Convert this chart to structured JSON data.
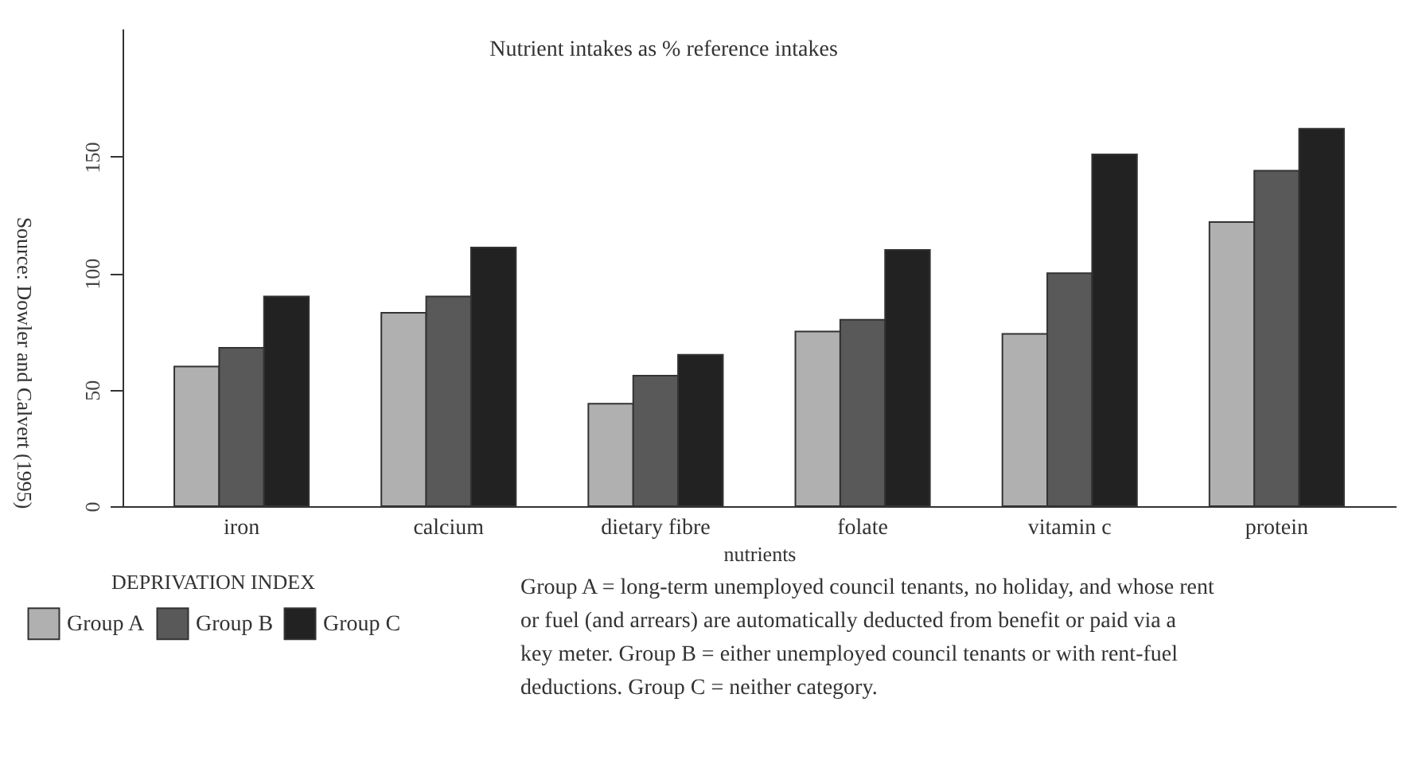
{
  "chart_data": {
    "type": "bar",
    "title": "Nutrient intakes as % reference intakes",
    "xlabel": "nutrients",
    "legend_title": "DEPRIVATION INDEX",
    "categories": [
      "iron",
      "calcium",
      "dietary fibre",
      "folate",
      "vitamin c",
      "protein"
    ],
    "series": [
      {
        "name": "Group A",
        "color": "#b0b0b0",
        "values": [
          60,
          83,
          44,
          75,
          74,
          122
        ]
      },
      {
        "name": "Group B",
        "color": "#595959",
        "values": [
          68,
          90,
          56,
          80,
          100,
          144
        ]
      },
      {
        "name": "Group C",
        "color": "#222222",
        "values": [
          90,
          111,
          65,
          110,
          151,
          162
        ]
      }
    ],
    "ylim": [
      0,
      205
    ],
    "yticks": [
      0,
      50,
      100,
      150
    ],
    "grid": false,
    "legend": "bottom left",
    "annotations": [
      "Source: Dowler and Calvert (1995)",
      "Group A = long-term unemployed council tenants, no holiday, and whose rent or fuel (and arrears) are automatically deducted from benefit or paid via a key meter. Group B = either unemployed council tenants or with rent-fuel deductions. Group C = neither category."
    ]
  }
}
